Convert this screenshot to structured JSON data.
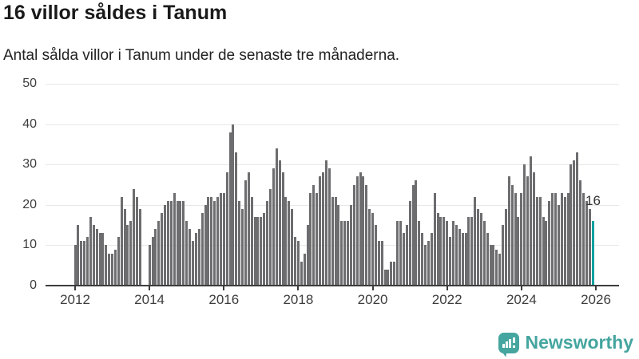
{
  "header": {
    "title": "16 villor såldes i Tanum",
    "subtitle": "Antal sålda villor i Tanum under de senaste tre månaderna."
  },
  "chart_data": {
    "type": "bar",
    "title": "16 villor såldes i Tanum",
    "subtitle": "Antal sålda villor i Tanum under de senaste tre månaderna.",
    "start_year": 2012,
    "months_per_bar": 1,
    "values": [
      10,
      15,
      11,
      11,
      12,
      17,
      15,
      14,
      13,
      13,
      10,
      8,
      8,
      9,
      12,
      22,
      19,
      15,
      16,
      24,
      22,
      19,
      0,
      0,
      10,
      12,
      14,
      16,
      18,
      20,
      21,
      21,
      23,
      21,
      21,
      21,
      16,
      14,
      11,
      13,
      14,
      18,
      20,
      22,
      22,
      21,
      22,
      23,
      23,
      28,
      38,
      40,
      33,
      21,
      19,
      26,
      28,
      22,
      17,
      17,
      17,
      18,
      21,
      24,
      29,
      34,
      31,
      28,
      22,
      21,
      19,
      12,
      11,
      6,
      8,
      15,
      23,
      25,
      23,
      27,
      28,
      31,
      29,
      22,
      22,
      20,
      16,
      16,
      16,
      20,
      25,
      27,
      28,
      27,
      25,
      19,
      18,
      15,
      11,
      11,
      4,
      4,
      6,
      6,
      16,
      16,
      13,
      15,
      21,
      25,
      26,
      16,
      13,
      10,
      11,
      13,
      23,
      18,
      17,
      17,
      16,
      12,
      16,
      15,
      14,
      13,
      13,
      17,
      17,
      22,
      19,
      18,
      16,
      13,
      10,
      10,
      9,
      8,
      15,
      19,
      27,
      25,
      23,
      17,
      23,
      30,
      27,
      32,
      28,
      22,
      22,
      17,
      16,
      21,
      23,
      23,
      20,
      23,
      22,
      23,
      30,
      31,
      33,
      26,
      23,
      21,
      19,
      16
    ],
    "highlight_index": 167,
    "highlight_value": 16,
    "annotation_label": "16",
    "bar_color": "#6d6d70",
    "highlight_color": "#00a19e",
    "y_ticks": [
      0,
      10,
      20,
      30,
      40,
      50
    ],
    "ylim": [
      0,
      50
    ],
    "x_tick_labels": [
      "2012",
      "2014",
      "2016",
      "2018",
      "2020",
      "2022",
      "2024",
      "2026"
    ],
    "grid": true,
    "legend": false
  },
  "footer": {
    "brand": "Newsworthy",
    "brand_color": "#45a59f"
  }
}
